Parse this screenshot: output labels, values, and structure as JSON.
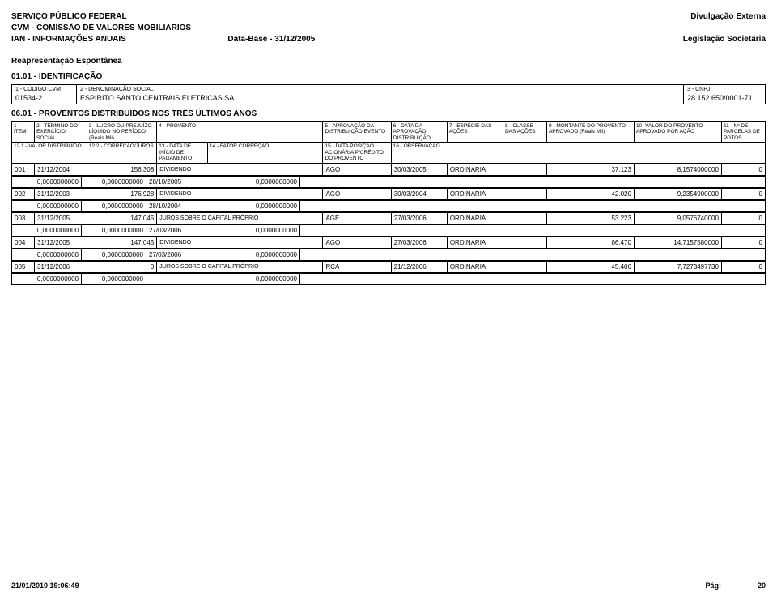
{
  "header": {
    "l1": "SERVIÇO PÚBLICO FEDERAL",
    "l2": "CVM - COMISSÃO DE VALORES MOBILIÁRIOS",
    "l3": "IAN - INFORMAÇÕES ANUAIS",
    "databaseLabel": "Data-Base - 31/12/2005",
    "r1": "Divulgação Externa",
    "r2": "Legislação Societária"
  },
  "reapres": "Reapresentação Espontânea",
  "section0101": "01.01 - IDENTIFICAÇÃO",
  "ident": {
    "codLabel": "1 - CÓDIGO CVM",
    "codValue": "01534-2",
    "denLabel": "2 - DENOMINAÇÃO SOCIAL",
    "denValue": "ESPIRITO SANTO CENTRAIS  ELETRICAS SA",
    "cnpjLabel": "3 - CNPJ",
    "cnpjValue": "28.152.650/0001-71"
  },
  "section0601": "06.01 - PROVENTOS DISTRIBUÍDOS NOS TRÊS ÚLTIMOS ANOS",
  "hdrs": {
    "h1": "1 - ITEM",
    "h2": "2 - TÉRMINO DO EXERCÍCIO SOCIAL",
    "h3": "3 - LUCRO OU PREJUÍZO LÍQUIDO NO PERÍODO (Reais Mil)",
    "h4": "4 - PROVENTO",
    "h5": "5 - APROVAÇÃO DA DISTRIBUIÇÃO EVENTO",
    "h6": "6 - DATA DA APROVAÇÃO DISTRIBUIÇÃO",
    "h7": "7 - ESPÉCIE DAS AÇÕES",
    "h8": "8 - CLASSE DAS AÇÕES",
    "h9": "9 - MONTANTE DO PROVENTO APROVADO (Reais Mil)",
    "h10": "10 -VALOR DO PROVENTO APROVADO POR AÇÃO",
    "h11": "11 - Nº DE PARCELAS DE PGTOS.",
    "h121": "12.1 - VALOR DISTRIBUIDO",
    "h122": "12.2 - CORREÇÃO/JUROS",
    "h13": "13 - DATA DE INÍCIO DE PAGAMENTO",
    "h14": "14 - FATOR CORREÇÃO",
    "h15": "15 - DATA POSIÇÃO ACIONÁRIA P/CRÉDITO DO PROVENTO",
    "h16": "16 - OBSERVAÇÃO"
  },
  "rows": [
    {
      "item": "001",
      "termino": "31/12/2004",
      "lucro": "156.308",
      "provento": "DIVIDENDO",
      "evento": "AGO",
      "dataAprov": "30/03/2005",
      "especie": "ORDINÁRIA",
      "classe": "",
      "montante": "37.123",
      "valorAcao": "8,1574000000",
      "parcelas": "0",
      "valDist": "0,0000000000",
      "corrJuros": "0,0000000000",
      "dataIni": "28/10/2005",
      "fator": "0,0000000000"
    },
    {
      "item": "002",
      "termino": "31/12/2003",
      "lucro": "176.928",
      "provento": "DIVIDENDO",
      "evento": "AGO",
      "dataAprov": "30/03/2004",
      "especie": "ORDINÁRIA",
      "classe": "",
      "montante": "42.020",
      "valorAcao": "9,2354900000",
      "parcelas": "0",
      "valDist": "0,0000000000",
      "corrJuros": "0,0000000000",
      "dataIni": "28/10/2004",
      "fator": "0,0000000000"
    },
    {
      "item": "003",
      "termino": "31/12/2005",
      "lucro": "147.045",
      "provento": "JUROS SOBRE O CAPITAL PRÓPRIO",
      "evento": "AGE",
      "dataAprov": "27/03/2006",
      "especie": "ORDINÁRIA",
      "classe": "",
      "montante": "53.223",
      "valorAcao": "9,0576740000",
      "parcelas": "0",
      "valDist": "0,0000000000",
      "corrJuros": "0,0000000000",
      "dataIni": "27/03/2006",
      "fator": "0,0000000000"
    },
    {
      "item": "004",
      "termino": "31/12/2005",
      "lucro": "147.045",
      "provento": "DIVIDENDO",
      "evento": "AGO",
      "dataAprov": "27/03/2006",
      "especie": "ORDINÁRIA",
      "classe": "",
      "montante": "86.470",
      "valorAcao": "14,7157580000",
      "parcelas": "0",
      "valDist": "0,0000000000",
      "corrJuros": "0,0000000000",
      "dataIni": "27/03/2006",
      "fator": "0,0000000000"
    },
    {
      "item": "005",
      "termino": "31/12/2006",
      "lucro": "0",
      "provento": "JUROS SOBRE O CAPITAL PRÓPRIO",
      "evento": "RCA",
      "dataAprov": "21/12/2006",
      "especie": "ORDINÁRIA",
      "classe": "",
      "montante": "45.406",
      "valorAcao": "7,7273497730",
      "parcelas": "0",
      "valDist": "0,0000000000",
      "corrJuros": "0,0000000000",
      "dataIni": "",
      "fator": "0,0000000000"
    }
  ],
  "footer": {
    "datetime": "21/01/2010 19:06:49",
    "pagLabel": "Pág:",
    "pagNum": "20"
  },
  "colWidths": {
    "c1": 26,
    "c2": 60,
    "c3": 80,
    "c4": 190,
    "c5": 78,
    "c6": 64,
    "c7": 64,
    "c8": 50,
    "c9": 100,
    "c10": 100,
    "c11": 50,
    "s1": 86,
    "s2": 80,
    "s3": 58,
    "s4": 132,
    "s5": 100
  }
}
